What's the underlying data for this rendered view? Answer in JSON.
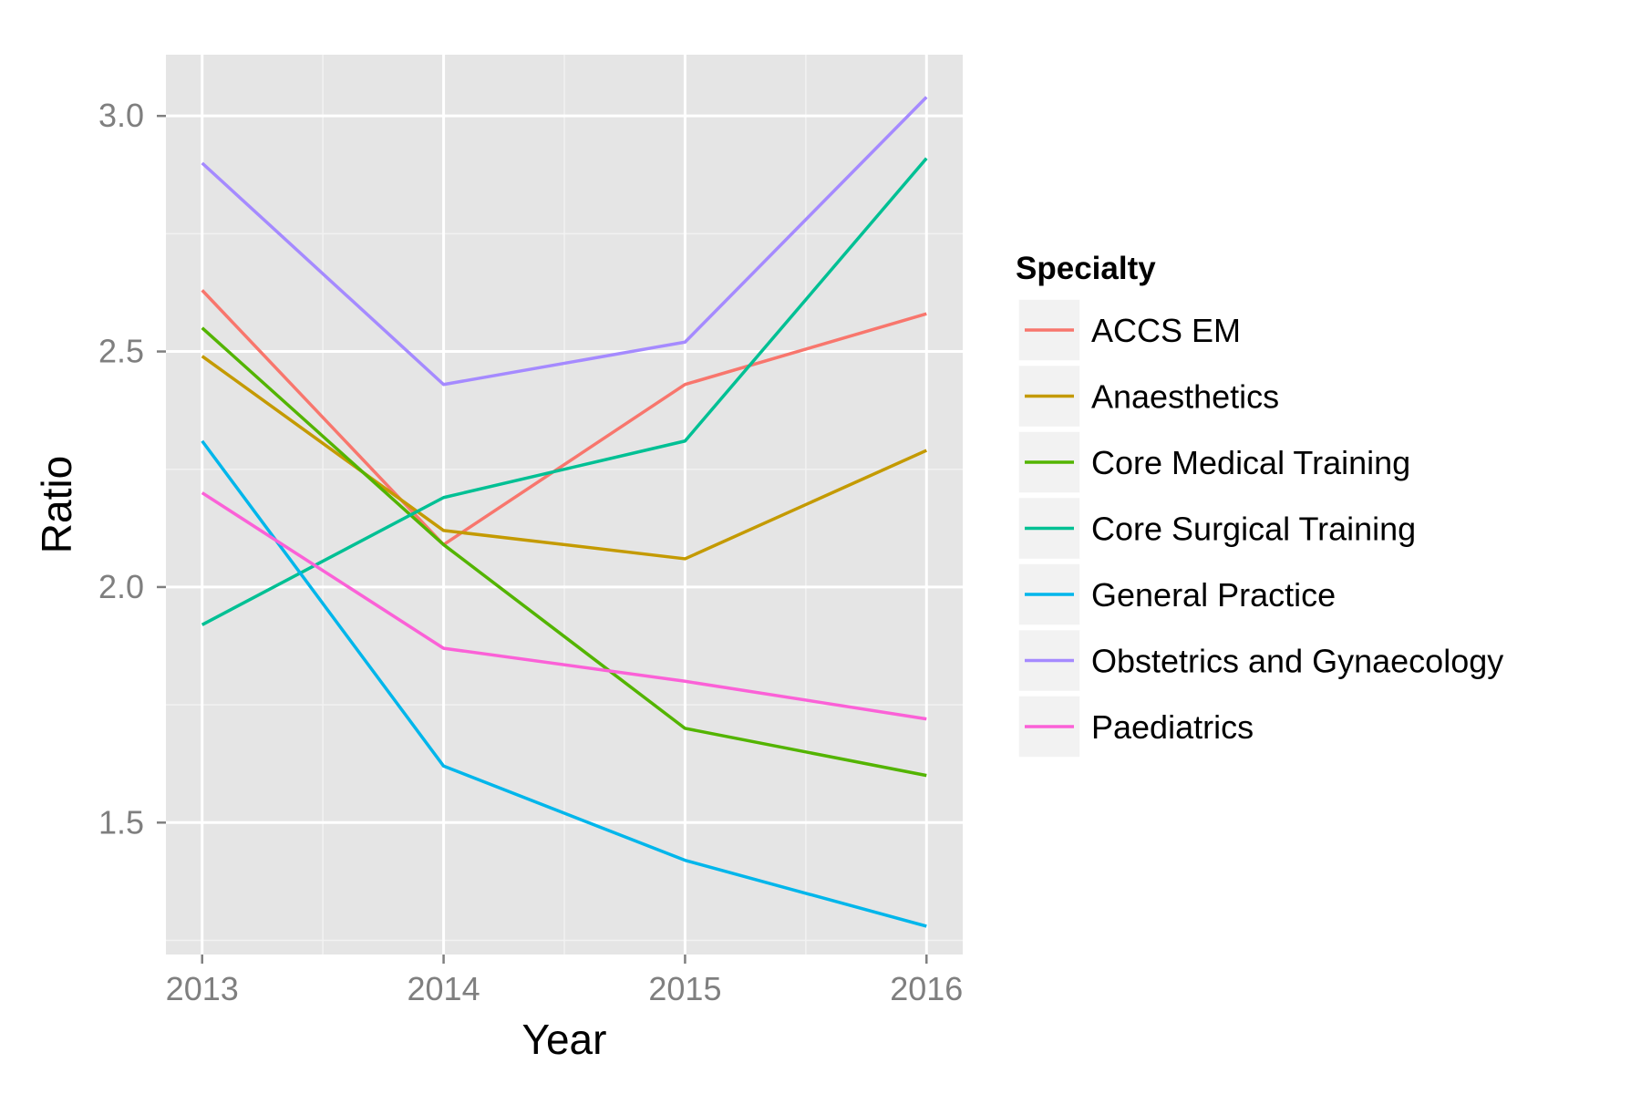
{
  "chart_data": {
    "type": "line",
    "xlabel": "Year",
    "ylabel": "Ratio",
    "x": [
      2013,
      2014,
      2015,
      2016
    ],
    "xlim": [
      2012.85,
      2016.15
    ],
    "ylim": [
      1.22,
      3.13
    ],
    "yticks": [
      1.5,
      2.0,
      2.5,
      3.0
    ],
    "ytick_labels": [
      "1.5",
      "2.0",
      "2.5",
      "3.0"
    ],
    "xtick_labels": [
      "2013",
      "2014",
      "2015",
      "2016"
    ],
    "grid": true,
    "background": "#e5e5e5",
    "legend": {
      "title": "Specialty",
      "placement": "right"
    },
    "series": [
      {
        "name": "ACCS EM",
        "color": "#F8766D",
        "values": [
          2.63,
          2.09,
          2.43,
          2.58
        ]
      },
      {
        "name": "Anaesthetics",
        "color": "#C49A00",
        "values": [
          2.49,
          2.12,
          2.06,
          2.29
        ]
      },
      {
        "name": "Core Medical Training",
        "color": "#53B400",
        "values": [
          2.55,
          2.09,
          1.7,
          1.6
        ]
      },
      {
        "name": "Core Surgical Training",
        "color": "#00C094",
        "values": [
          1.92,
          2.19,
          2.31,
          2.91
        ]
      },
      {
        "name": "General Practice",
        "color": "#00B6EB",
        "values": [
          2.31,
          1.62,
          1.42,
          1.28
        ]
      },
      {
        "name": "Obstetrics and Gynaecology",
        "color": "#A58AFF",
        "values": [
          2.9,
          2.43,
          2.52,
          3.04
        ]
      },
      {
        "name": "Paediatrics",
        "color": "#FB61D7",
        "values": [
          2.2,
          1.87,
          1.8,
          1.72
        ]
      }
    ]
  }
}
